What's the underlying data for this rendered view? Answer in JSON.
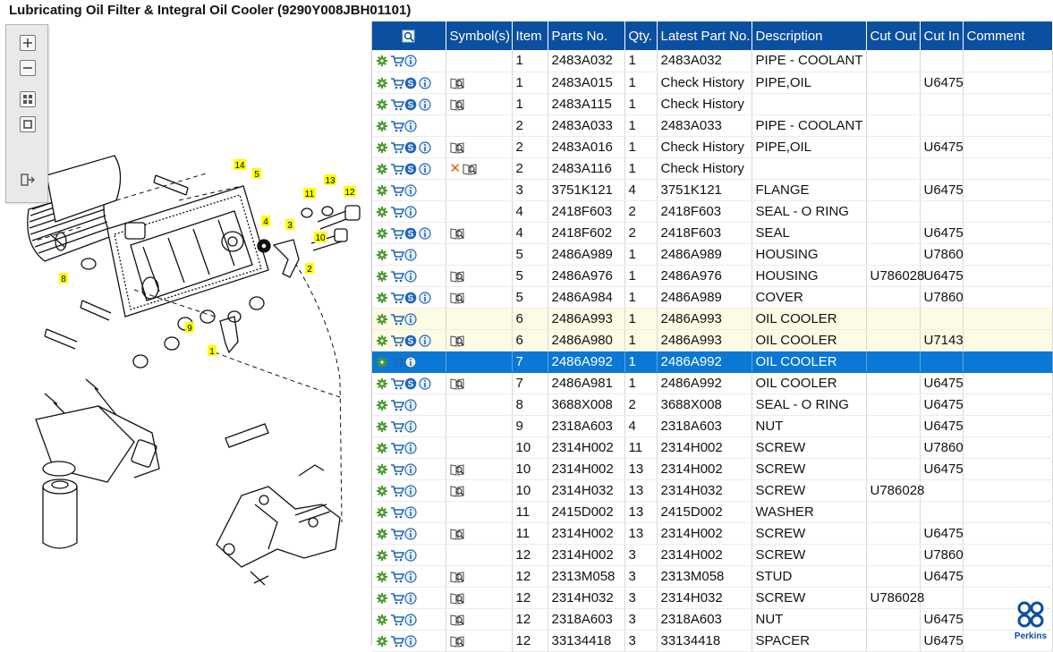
{
  "title": "Lubricating Oil Filter & Integral Oil Cooler (9290Y008JBH01101)",
  "colors": {
    "header": "#0b4fa0",
    "selected": "#0a78d4",
    "highlight": "#fdfbe4",
    "callout": "#ffff00"
  },
  "toolbar": {
    "zoom_in": "zoom-in-icon",
    "zoom_out": "zoom-out-icon",
    "fit": "fit-page-icon",
    "actual": "actual-size-icon",
    "export": "export-icon"
  },
  "callouts": [
    "14",
    "5",
    "13",
    "11",
    "12",
    "4",
    "3",
    "10",
    "8",
    "2",
    "9",
    "1"
  ],
  "table": {
    "headers": [
      "",
      "Symbol(s)",
      "Item",
      "Parts No.",
      "Qty.",
      "Latest Part No.",
      "Description",
      "Cut Out",
      "Cut In",
      "Comment"
    ],
    "rows": [
      {
        "s": false,
        "b": false,
        "x": false,
        "item": "1",
        "part": "2483A032",
        "qty": "1",
        "latest": "2483A032",
        "desc": "PIPE - COOLANT",
        "cutout": "",
        "cutin": "",
        "comment": ""
      },
      {
        "s": true,
        "b": true,
        "x": false,
        "item": "1",
        "part": "2483A015",
        "qty": "1",
        "latest": "Check History",
        "desc": "PIPE,OIL",
        "cutout": "",
        "cutin": "U6475",
        "comment": ""
      },
      {
        "s": true,
        "b": true,
        "x": false,
        "item": "1",
        "part": "2483A115",
        "qty": "1",
        "latest": "Check History",
        "desc": "",
        "cutout": "",
        "cutin": "",
        "comment": ""
      },
      {
        "s": false,
        "b": false,
        "x": false,
        "item": "2",
        "part": "2483A033",
        "qty": "1",
        "latest": "2483A033",
        "desc": "PIPE - COOLANT",
        "cutout": "",
        "cutin": "",
        "comment": ""
      },
      {
        "s": true,
        "b": true,
        "x": false,
        "item": "2",
        "part": "2483A016",
        "qty": "1",
        "latest": "Check History",
        "desc": "PIPE,OIL",
        "cutout": "",
        "cutin": "U6475",
        "comment": ""
      },
      {
        "s": true,
        "b": true,
        "x": true,
        "item": "2",
        "part": "2483A116",
        "qty": "1",
        "latest": "Check History",
        "desc": "",
        "cutout": "",
        "cutin": "",
        "comment": ""
      },
      {
        "s": false,
        "b": false,
        "x": false,
        "item": "3",
        "part": "3751K121",
        "qty": "4",
        "latest": "3751K121",
        "desc": "FLANGE",
        "cutout": "",
        "cutin": "U6475",
        "comment": ""
      },
      {
        "s": false,
        "b": false,
        "x": false,
        "item": "4",
        "part": "2418F603",
        "qty": "2",
        "latest": "2418F603",
        "desc": "SEAL - O RING",
        "cutout": "",
        "cutin": "",
        "comment": ""
      },
      {
        "s": true,
        "b": true,
        "x": false,
        "item": "4",
        "part": "2418F602",
        "qty": "2",
        "latest": "2418F603",
        "desc": "SEAL",
        "cutout": "",
        "cutin": "U6475",
        "comment": ""
      },
      {
        "s": false,
        "b": false,
        "x": false,
        "item": "5",
        "part": "2486A989",
        "qty": "1",
        "latest": "2486A989",
        "desc": "HOUSING",
        "cutout": "",
        "cutin": "U7860",
        "comment": ""
      },
      {
        "s": false,
        "b": true,
        "x": false,
        "item": "5",
        "part": "2486A976",
        "qty": "1",
        "latest": "2486A976",
        "desc": "HOUSING",
        "cutout": "U786028",
        "cutin": "U6475",
        "comment": ""
      },
      {
        "s": true,
        "b": true,
        "x": false,
        "item": "5",
        "part": "2486A984",
        "qty": "1",
        "latest": "2486A989",
        "desc": "COVER",
        "cutout": "",
        "cutin": "U7860",
        "comment": ""
      },
      {
        "s": false,
        "b": false,
        "x": false,
        "hl": true,
        "item": "6",
        "part": "2486A993",
        "qty": "1",
        "latest": "2486A993",
        "desc": "OIL COOLER",
        "cutout": "",
        "cutin": "",
        "comment": ""
      },
      {
        "s": true,
        "b": true,
        "x": false,
        "hl": true,
        "item": "6",
        "part": "2486A980",
        "qty": "1",
        "latest": "2486A993",
        "desc": "OIL COOLER",
        "cutout": "",
        "cutin": "U7143",
        "comment": ""
      },
      {
        "s": false,
        "b": false,
        "x": false,
        "sel": true,
        "item": "7",
        "part": "2486A992",
        "qty": "1",
        "latest": "2486A992",
        "desc": "OIL COOLER",
        "cutout": "",
        "cutin": "",
        "comment": ""
      },
      {
        "s": true,
        "b": true,
        "x": false,
        "item": "7",
        "part": "2486A981",
        "qty": "1",
        "latest": "2486A992",
        "desc": "OIL COOLER",
        "cutout": "",
        "cutin": "U6475",
        "comment": ""
      },
      {
        "s": false,
        "b": false,
        "x": false,
        "item": "8",
        "part": "3688X008",
        "qty": "2",
        "latest": "3688X008",
        "desc": "SEAL - O RING",
        "cutout": "",
        "cutin": "U6475",
        "comment": ""
      },
      {
        "s": false,
        "b": false,
        "x": false,
        "item": "9",
        "part": "2318A603",
        "qty": "4",
        "latest": "2318A603",
        "desc": "NUT",
        "cutout": "",
        "cutin": "U6475",
        "comment": ""
      },
      {
        "s": false,
        "b": false,
        "x": false,
        "item": "10",
        "part": "2314H002",
        "qty": "11",
        "latest": "2314H002",
        "desc": "SCREW",
        "cutout": "",
        "cutin": "U7860",
        "comment": ""
      },
      {
        "s": false,
        "b": true,
        "x": false,
        "item": "10",
        "part": "2314H002",
        "qty": "13",
        "latest": "2314H002",
        "desc": "SCREW",
        "cutout": "",
        "cutin": "U6475",
        "comment": ""
      },
      {
        "s": false,
        "b": true,
        "x": false,
        "item": "10",
        "part": "2314H032",
        "qty": "13",
        "latest": "2314H032",
        "desc": "SCREW",
        "cutout": "U786028",
        "cutin": "",
        "comment": ""
      },
      {
        "s": false,
        "b": false,
        "x": false,
        "item": "11",
        "part": "2415D002",
        "qty": "13",
        "latest": "2415D002",
        "desc": "WASHER",
        "cutout": "",
        "cutin": "",
        "comment": ""
      },
      {
        "s": false,
        "b": true,
        "x": false,
        "item": "11",
        "part": "2314H002",
        "qty": "13",
        "latest": "2314H002",
        "desc": "SCREW",
        "cutout": "",
        "cutin": "U6475",
        "comment": ""
      },
      {
        "s": false,
        "b": false,
        "x": false,
        "item": "12",
        "part": "2314H002",
        "qty": "3",
        "latest": "2314H002",
        "desc": "SCREW",
        "cutout": "",
        "cutin": "U7860",
        "comment": ""
      },
      {
        "s": false,
        "b": true,
        "x": false,
        "item": "12",
        "part": "2313M058",
        "qty": "3",
        "latest": "2313M058",
        "desc": "STUD",
        "cutout": "",
        "cutin": "U6475",
        "comment": ""
      },
      {
        "s": false,
        "b": true,
        "x": false,
        "item": "12",
        "part": "2314H032",
        "qty": "3",
        "latest": "2314H032",
        "desc": "SCREW",
        "cutout": "U786028",
        "cutin": "",
        "comment": ""
      },
      {
        "s": false,
        "b": true,
        "x": false,
        "item": "12",
        "part": "2318A603",
        "qty": "3",
        "latest": "2318A603",
        "desc": "NUT",
        "cutout": "",
        "cutin": "U6475",
        "comment": ""
      },
      {
        "s": false,
        "b": true,
        "x": false,
        "item": "12",
        "part": "33134418",
        "qty": "3",
        "latest": "33134418",
        "desc": "SPACER",
        "cutout": "",
        "cutin": "U6475",
        "comment": ""
      }
    ]
  },
  "logo_text": "Perkins"
}
